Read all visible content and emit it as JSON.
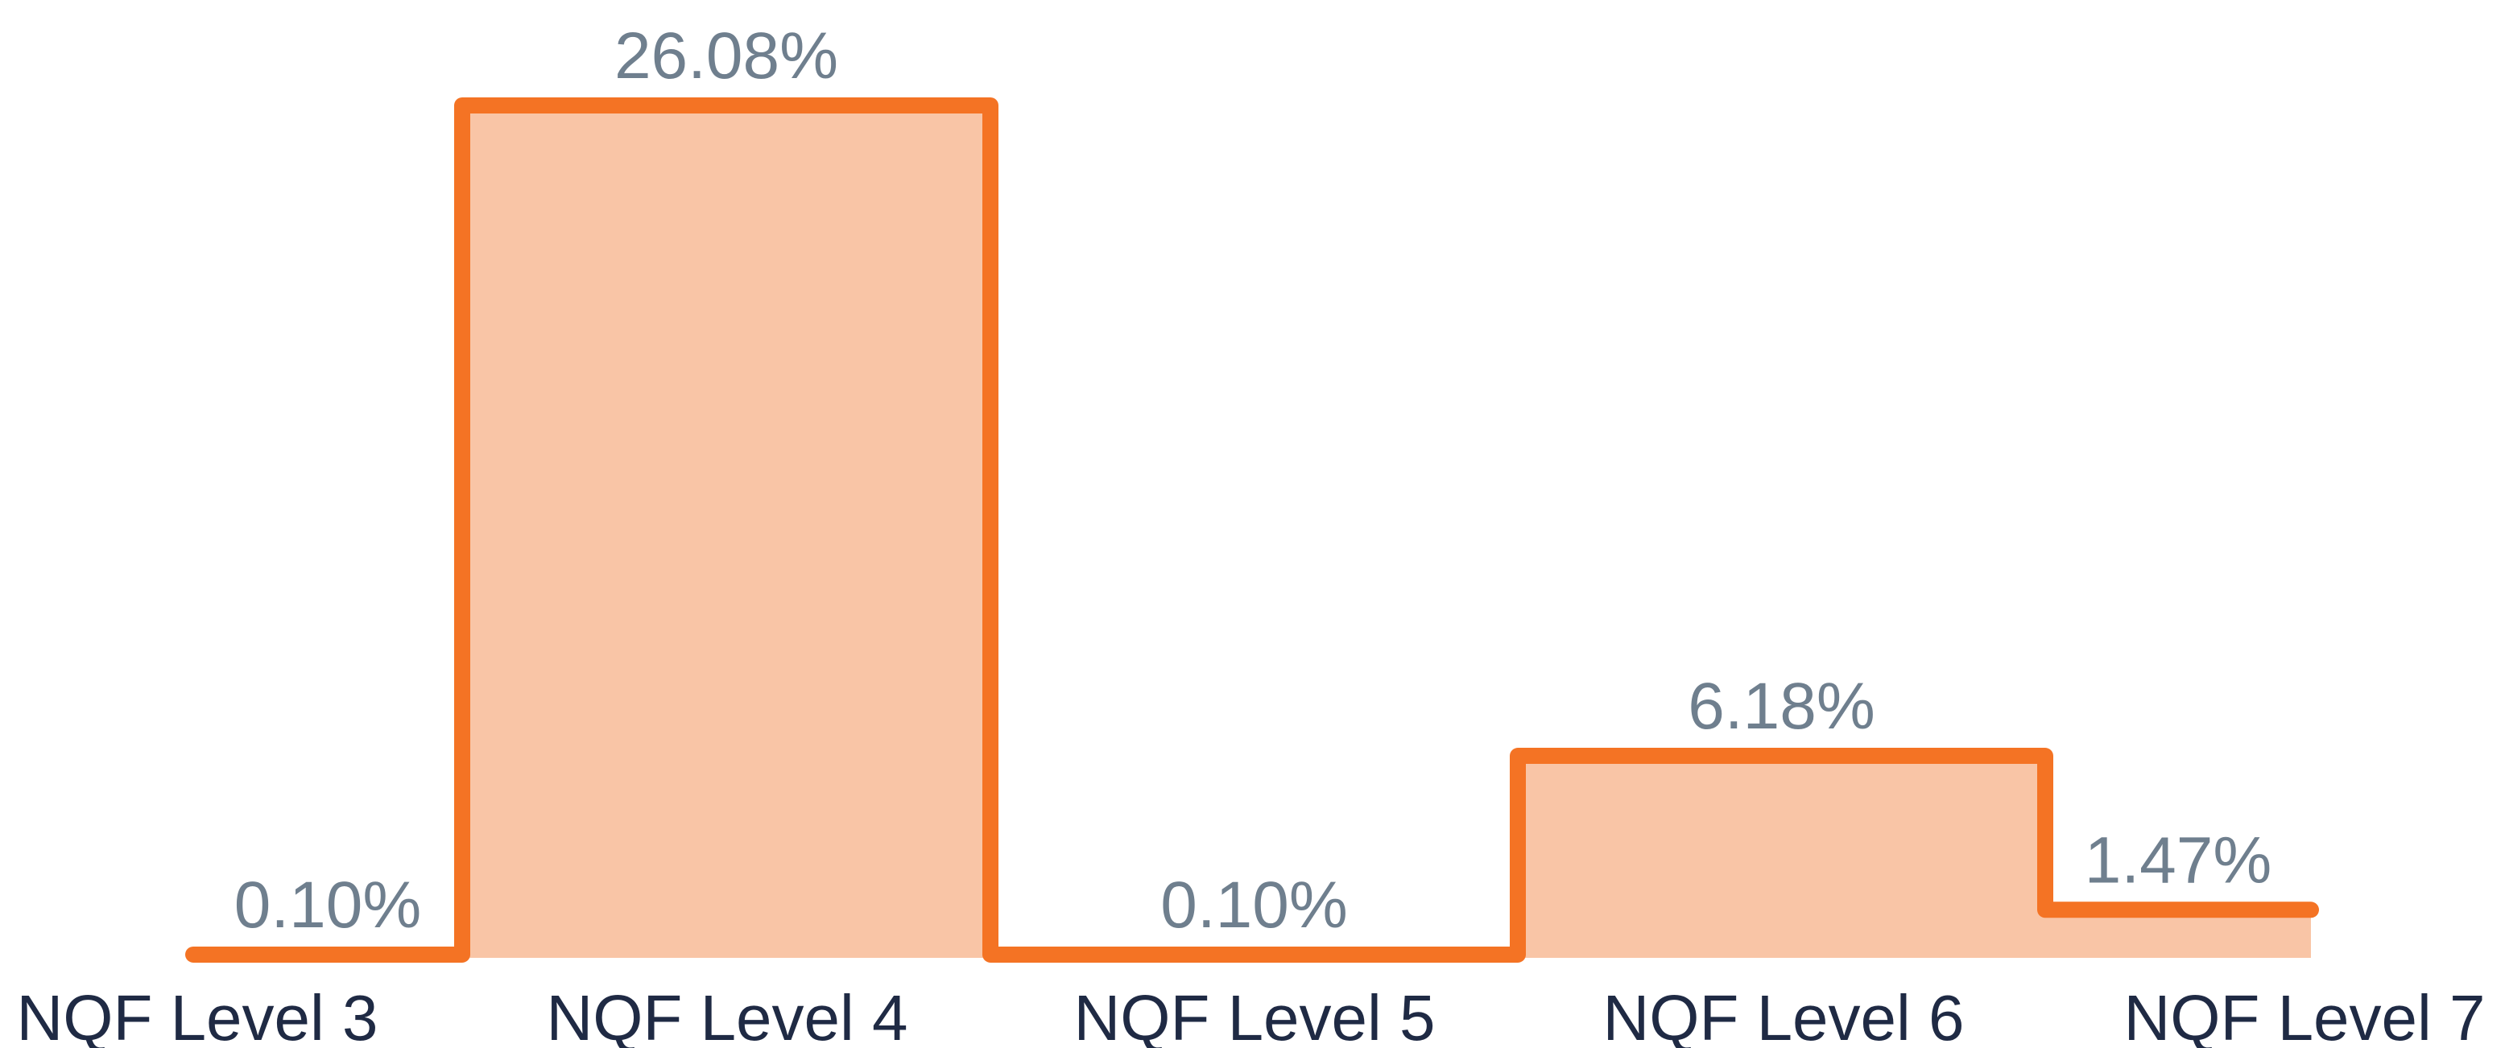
{
  "chart_data": {
    "type": "area",
    "title": "",
    "xlabel": "",
    "ylabel": "",
    "categories": [
      "NQF Level 3",
      "NQF Level 4",
      "NQF Level 5",
      "NQF Level 6",
      "NQF Level 7"
    ],
    "series": [
      {
        "values": [
          0.1,
          26.08,
          0.1,
          6.18,
          1.47
        ],
        "labels": [
          "0.10%",
          "26.08%",
          "0.10%",
          "6.18%",
          "1.47%"
        ]
      }
    ],
    "ylim": [
      0,
      26.08
    ],
    "grid": false,
    "legend": "none",
    "colors": {
      "line": "#f47324",
      "fill": "#f9c5a6",
      "value_label": "#6f7f8e",
      "category_label": "#1f2a44"
    }
  }
}
